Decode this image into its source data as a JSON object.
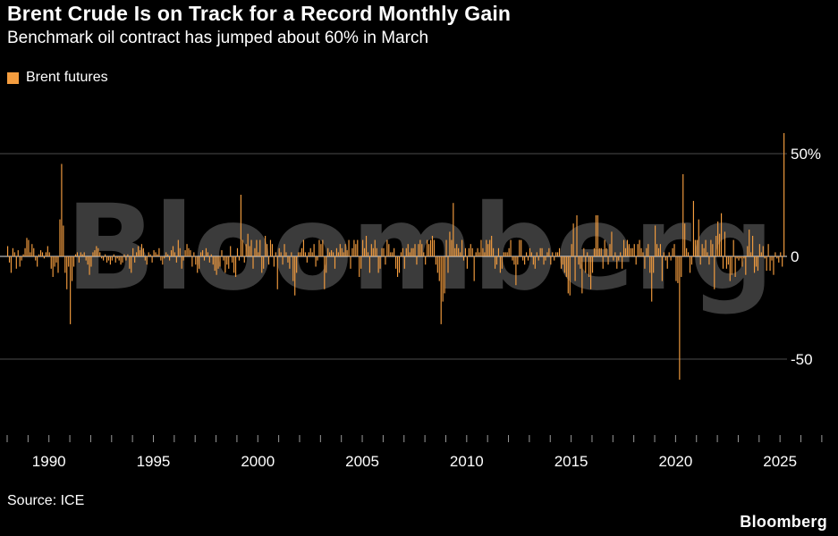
{
  "header": {
    "title": "Brent Crude Is on Track for a Record Monthly Gain",
    "subtitle": "Benchmark oil contract has jumped about 60% in March"
  },
  "legend": {
    "label": "Brent futures",
    "color": "#F49D3F"
  },
  "watermark": "Bloomberg",
  "source": "Source: ICE",
  "brand": "Bloomberg",
  "chart_data": {
    "type": "bar",
    "title": "Brent Crude Is on Track for a Record Monthly Gain",
    "subtitle": "Benchmark oil contract has jumped about 60% in March",
    "series_name": "Brent futures",
    "unit": "percent_monthly_change",
    "x_start": "1988-01",
    "x_end": "2025-03",
    "xlabel": "",
    "ylabel": "",
    "ylim": [
      -75,
      78
    ],
    "grid": "horizontal",
    "legend_position": "top-left",
    "y_ticks": [
      {
        "value": 50,
        "label": "50%"
      },
      {
        "value": 0,
        "label": "0"
      },
      {
        "value": -50,
        "label": "-50"
      }
    ],
    "x_tick_years_labeled": [
      "1990",
      "1995",
      "2000",
      "2005",
      "2010",
      "2015",
      "2020",
      "2025"
    ],
    "values": [
      5,
      -3,
      -8,
      4,
      2,
      -6,
      3,
      -5,
      -2,
      1,
      4,
      9,
      8,
      2,
      6,
      4,
      -2,
      -5,
      1,
      3,
      2,
      -1,
      2,
      5,
      2,
      -6,
      -10,
      -5,
      -3,
      -8,
      18,
      45,
      15,
      -8,
      -16,
      -5,
      -33,
      -12,
      -5,
      1,
      2,
      -3,
      2,
      1,
      2,
      -2,
      -4,
      -9,
      -5,
      2,
      3,
      5,
      4,
      2,
      -1,
      -2,
      1,
      -3,
      -2,
      -4,
      -2,
      1,
      -3,
      -1,
      -2,
      -4,
      -3,
      1,
      -2,
      1,
      -6,
      -8,
      4,
      -3,
      2,
      5,
      3,
      6,
      4,
      -2,
      -4,
      2,
      1,
      -3,
      3,
      2,
      1,
      4,
      -2,
      -4,
      -1,
      2,
      1,
      -2,
      3,
      5,
      2,
      -3,
      8,
      4,
      -6,
      -2,
      3,
      6,
      4,
      3,
      -5,
      2,
      -4,
      -8,
      -6,
      2,
      3,
      -2,
      4,
      2,
      -3,
      1,
      -4,
      -7,
      -9,
      -6,
      -5,
      3,
      -2,
      -8,
      -4,
      -6,
      5,
      -3,
      -8,
      -10,
      4,
      -2,
      30,
      8,
      -3,
      6,
      11,
      5,
      8,
      -6,
      4,
      8,
      2,
      8,
      -8,
      -6,
      10,
      6,
      -4,
      8,
      6,
      -5,
      2,
      -16,
      4,
      2,
      -4,
      6,
      2,
      -3,
      -6,
      2,
      -12,
      -19,
      -8,
      2,
      2,
      4,
      8,
      2,
      -3,
      2,
      4,
      2,
      6,
      -5,
      -2,
      8,
      6,
      8,
      -16,
      -8,
      4,
      2,
      3,
      2,
      -6,
      4,
      2,
      6,
      4,
      2,
      6,
      3,
      8,
      -6,
      4,
      8,
      6,
      8,
      -10,
      -6,
      8,
      4,
      10,
      2,
      -8,
      6,
      4,
      8,
      4,
      -8,
      -6,
      4,
      4,
      -4,
      8,
      6,
      2,
      2,
      4,
      -6,
      -10,
      -8,
      2,
      4,
      -6,
      4,
      6,
      2,
      4,
      4,
      6,
      -4,
      6,
      8,
      6,
      2,
      -4,
      8,
      6,
      8,
      10,
      8,
      -4,
      -8,
      -12,
      -33,
      -22,
      -18,
      8,
      -8,
      12,
      8,
      26,
      4,
      6,
      4,
      2,
      8,
      -2,
      4,
      -6,
      4,
      6,
      4,
      -12,
      2,
      4,
      2,
      8,
      4,
      2,
      8,
      6,
      8,
      10,
      4,
      -6,
      -4,
      4,
      -8,
      -6,
      2,
      2,
      2,
      4,
      8,
      -2,
      -4,
      -14,
      -4,
      8,
      8,
      -2,
      -4,
      2,
      -2,
      4,
      2,
      -4,
      -6,
      2,
      -2,
      4,
      4,
      -4,
      -2,
      2,
      4,
      -4,
      2,
      -2,
      2,
      2,
      4,
      -6,
      -4,
      -8,
      -10,
      -18,
      -19,
      6,
      16,
      -12,
      20,
      -4,
      -6,
      -18,
      4,
      -8,
      2,
      -10,
      -16,
      -8,
      4,
      20,
      20,
      4,
      4,
      -6,
      8,
      4,
      -4,
      6,
      12,
      -2,
      2,
      -6,
      -2,
      2,
      -6,
      8,
      4,
      8,
      6,
      4,
      4,
      6,
      -4,
      6,
      8,
      4,
      2,
      -6,
      4,
      6,
      -8,
      -22,
      -8,
      15,
      6,
      4,
      6,
      -12,
      2,
      -2,
      -6,
      2,
      -2,
      4,
      6,
      -12,
      -13,
      -60,
      -10,
      40,
      16,
      4,
      2,
      -8,
      -4,
      27,
      8,
      8,
      18,
      -4,
      6,
      4,
      8,
      2,
      -4,
      8,
      6,
      -16,
      10,
      17,
      11,
      21,
      -6,
      12,
      -6,
      -4,
      -12,
      -9,
      8,
      -10,
      -1,
      -2,
      -1,
      -5,
      -1,
      -9,
      5,
      13,
      2,
      10,
      -8,
      -5,
      -7,
      6,
      2,
      5,
      -1,
      -7,
      6,
      -7,
      -2,
      -9,
      2,
      -1,
      -3,
      2,
      -5,
      60
    ]
  }
}
